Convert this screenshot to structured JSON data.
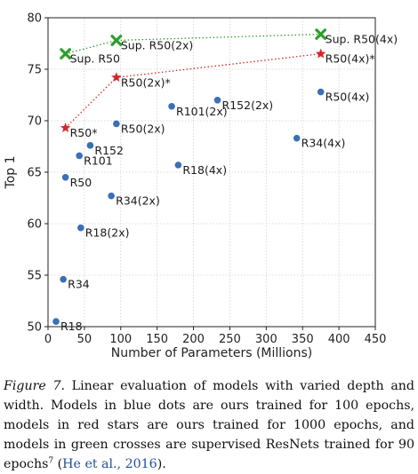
{
  "chart_data": {
    "type": "scatter",
    "xlabel": "Number of Parameters (Millions)",
    "ylabel": "Top 1",
    "xlim": [
      0,
      450
    ],
    "ylim": [
      50,
      80
    ],
    "xticks": [
      0,
      50,
      100,
      150,
      200,
      250,
      300,
      350,
      400,
      450
    ],
    "yticks": [
      50,
      55,
      60,
      65,
      70,
      75,
      80
    ],
    "grid": true,
    "series": [
      {
        "marker": "circle",
        "color": "#3b6fb6",
        "points": [
          {
            "label": "R18",
            "x": 11,
            "y": 50.5
          },
          {
            "label": "R34",
            "x": 21,
            "y": 54.6
          },
          {
            "label": "R50",
            "x": 24,
            "y": 64.5
          },
          {
            "label": "R101",
            "x": 43,
            "y": 66.6
          },
          {
            "label": "R152",
            "x": 58,
            "y": 67.6
          },
          {
            "label": "R18(2x)",
            "x": 45,
            "y": 59.6
          },
          {
            "label": "R34(2x)",
            "x": 87,
            "y": 62.7
          },
          {
            "label": "R50(2x)",
            "x": 94,
            "y": 69.7
          },
          {
            "label": "R101(2x)",
            "x": 170,
            "y": 71.4
          },
          {
            "label": "R152(2x)",
            "x": 233,
            "y": 72.0
          },
          {
            "label": "R18(4x)",
            "x": 179,
            "y": 65.7
          },
          {
            "label": "R34(4x)",
            "x": 342,
            "y": 68.3
          },
          {
            "label": "R50(4x)",
            "x": 375,
            "y": 72.8
          }
        ]
      },
      {
        "marker": "star",
        "color": "#d62728",
        "connected": true,
        "points": [
          {
            "label": "R50*",
            "x": 24,
            "y": 69.3
          },
          {
            "label": "R50(2x)*",
            "x": 94,
            "y": 74.2
          },
          {
            "label": "R50(4x)*",
            "x": 375,
            "y": 76.5
          }
        ]
      },
      {
        "marker": "cross",
        "color": "#2ca02c",
        "connected": true,
        "points": [
          {
            "label": "Sup. R50",
            "x": 24,
            "y": 76.5
          },
          {
            "label": "Sup. R50(2x)",
            "x": 94,
            "y": 77.8
          },
          {
            "label": "Sup. R50(4x)",
            "x": 375,
            "y": 78.4
          }
        ]
      }
    ]
  },
  "caption": {
    "figure_label": "Figure 7.",
    "text": " Linear evaluation of models with varied depth and width. Models in blue dots are ours trained for 100 epochs, models in red stars are ours trained for 1000 epochs, and models in green crosses are supervised ResNets trained for 90 epochs",
    "footnote_mark": "7",
    "citation": "He et al., 2016",
    "open_paren": " (",
    "close": ")."
  }
}
